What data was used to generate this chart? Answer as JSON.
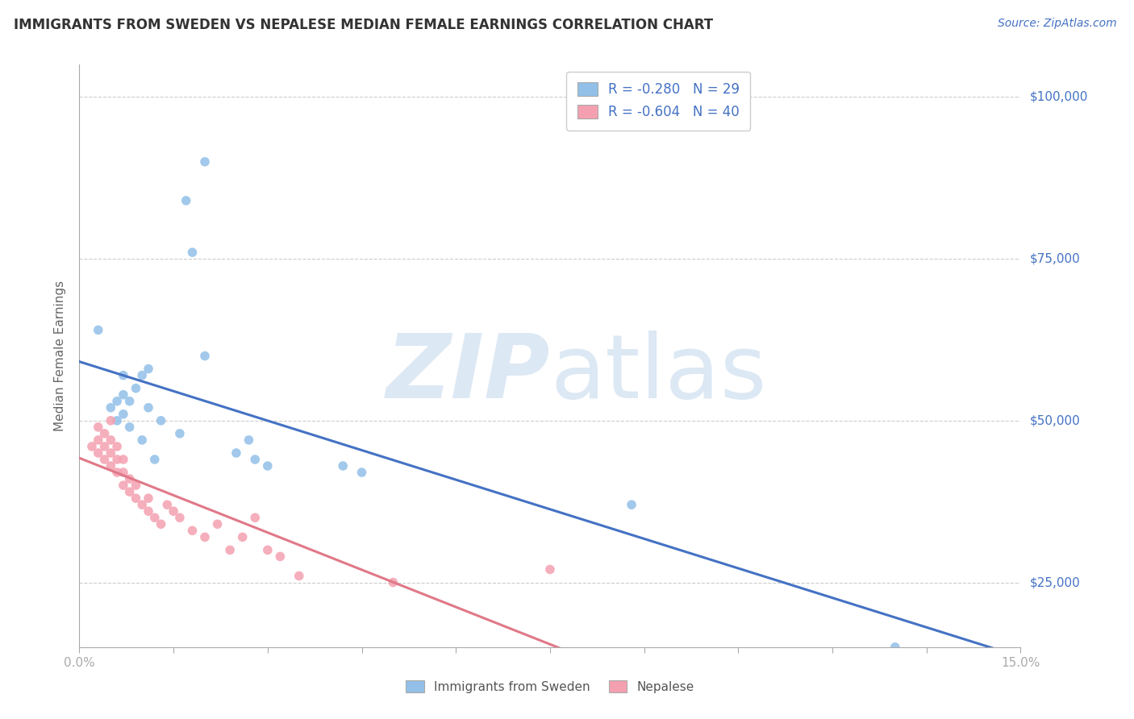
{
  "title": "IMMIGRANTS FROM SWEDEN VS NEPALESE MEDIAN FEMALE EARNINGS CORRELATION CHART",
  "source_text": "Source: ZipAtlas.com",
  "ylabel": "Median Female Earnings",
  "xlim": [
    0,
    0.15
  ],
  "ylim": [
    15000,
    105000
  ],
  "yticks": [
    25000,
    50000,
    75000,
    100000
  ],
  "ytick_labels": [
    "$25,000",
    "$50,000",
    "$75,000",
    "$100,000"
  ],
  "title_color": "#333333",
  "title_fontsize": 12,
  "watermark_zip": "ZIP",
  "watermark_atlas": "atlas",
  "watermark_color": "#dce8f4",
  "watermark_fontsize": 80,
  "legend_r1": "-0.280",
  "legend_n1": "29",
  "legend_r2": "-0.604",
  "legend_n2": "40",
  "blue_color": "#92C0E8",
  "pink_color": "#F4A0B0",
  "blue_line_color": "#4472C4",
  "pink_line_color": "#E07888",
  "axis_color": "#aaaaaa",
  "grid_color": "#cccccc",
  "label_color_blue": "#4472C4",
  "sweden_x": [
    0.003,
    0.005,
    0.006,
    0.007,
    0.007,
    0.008,
    0.008,
    0.009,
    0.01,
    0.01,
    0.011,
    0.012,
    0.013,
    0.016,
    0.017,
    0.018,
    0.02,
    0.025,
    0.027,
    0.028,
    0.03,
    0.042,
    0.045,
    0.088,
    0.13,
    0.006,
    0.007,
    0.011,
    0.02
  ],
  "sweden_y": [
    64000,
    52000,
    50000,
    51000,
    54000,
    49000,
    53000,
    55000,
    47000,
    57000,
    52000,
    44000,
    50000,
    48000,
    84000,
    76000,
    90000,
    45000,
    47000,
    44000,
    43000,
    43000,
    42000,
    37000,
    15000,
    53000,
    57000,
    58000,
    60000
  ],
  "nepal_x": [
    0.002,
    0.003,
    0.003,
    0.003,
    0.004,
    0.004,
    0.004,
    0.005,
    0.005,
    0.005,
    0.005,
    0.006,
    0.006,
    0.006,
    0.007,
    0.007,
    0.007,
    0.008,
    0.008,
    0.009,
    0.009,
    0.01,
    0.011,
    0.011,
    0.012,
    0.013,
    0.014,
    0.015,
    0.016,
    0.018,
    0.02,
    0.022,
    0.024,
    0.026,
    0.028,
    0.03,
    0.032,
    0.035,
    0.05,
    0.075
  ],
  "nepal_y": [
    46000,
    45000,
    47000,
    49000,
    44000,
    46000,
    48000,
    43000,
    45000,
    47000,
    50000,
    42000,
    44000,
    46000,
    40000,
    42000,
    44000,
    39000,
    41000,
    38000,
    40000,
    37000,
    36000,
    38000,
    35000,
    34000,
    37000,
    36000,
    35000,
    33000,
    32000,
    34000,
    30000,
    32000,
    35000,
    30000,
    29000,
    26000,
    25000,
    27000
  ]
}
